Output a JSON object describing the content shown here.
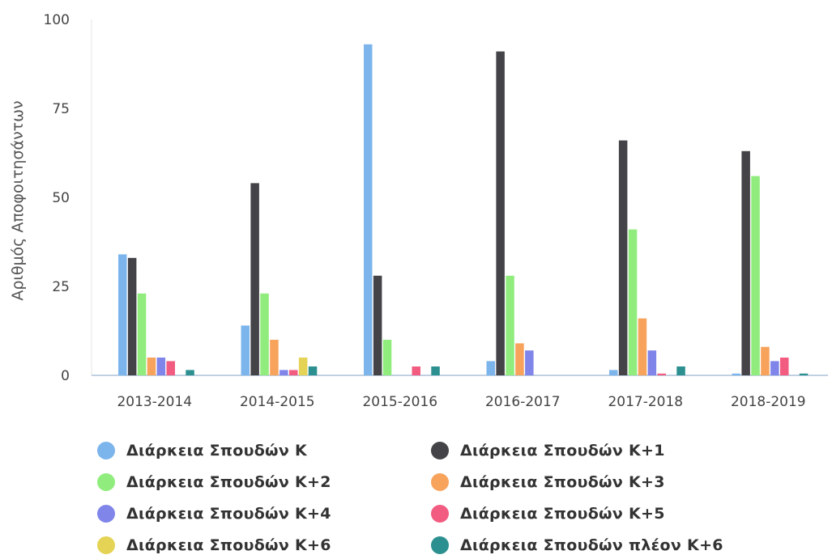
{
  "chart_data": {
    "type": "bar",
    "title": "",
    "xlabel": "",
    "ylabel": "Αριθμός Αποφοιτησάντων",
    "ylim": [
      0,
      100
    ],
    "yticks": [
      "0",
      "25",
      "50",
      "75",
      "100"
    ],
    "categories": [
      "2013-2014",
      "2014-2015",
      "2015-2016",
      "2016-2017",
      "2017-2018",
      "2018-2019"
    ],
    "legend_position": "bottom",
    "grid": false,
    "series": [
      {
        "name": "Διάρκεια Σπουδών Κ",
        "color": "#7cb5ec",
        "values": [
          34,
          14,
          93,
          4,
          1.5,
          0.5
        ]
      },
      {
        "name": "Διάρκεια Σπουδών Κ+1",
        "color": "#434348",
        "values": [
          33,
          54,
          28,
          91,
          66,
          63
        ]
      },
      {
        "name": "Διάρκεια Σπουδών Κ+2",
        "color": "#90ed7d",
        "values": [
          23,
          23,
          10,
          28,
          41,
          56
        ]
      },
      {
        "name": "Διάρκεια Σπουδών Κ+3",
        "color": "#f7a35c",
        "values": [
          5,
          10,
          0,
          9,
          16,
          8
        ]
      },
      {
        "name": "Διάρκεια Σπουδών Κ+4",
        "color": "#8085e9",
        "values": [
          5,
          1.5,
          0,
          7,
          7,
          4
        ]
      },
      {
        "name": "Διάρκεια Σπουδών Κ+5",
        "color": "#f15c80",
        "values": [
          4,
          1.5,
          2.5,
          0,
          0.5,
          5
        ]
      },
      {
        "name": "Διάρκεια Σπουδών Κ+6",
        "color": "#e4d354",
        "values": [
          0,
          5,
          0,
          0,
          0,
          0
        ]
      },
      {
        "name": "Διάρκεια Σπουδών πλέον Κ+6",
        "color": "#2b908f",
        "values": [
          1.5,
          2.5,
          2.5,
          0,
          2.5,
          0.5
        ]
      }
    ]
  }
}
